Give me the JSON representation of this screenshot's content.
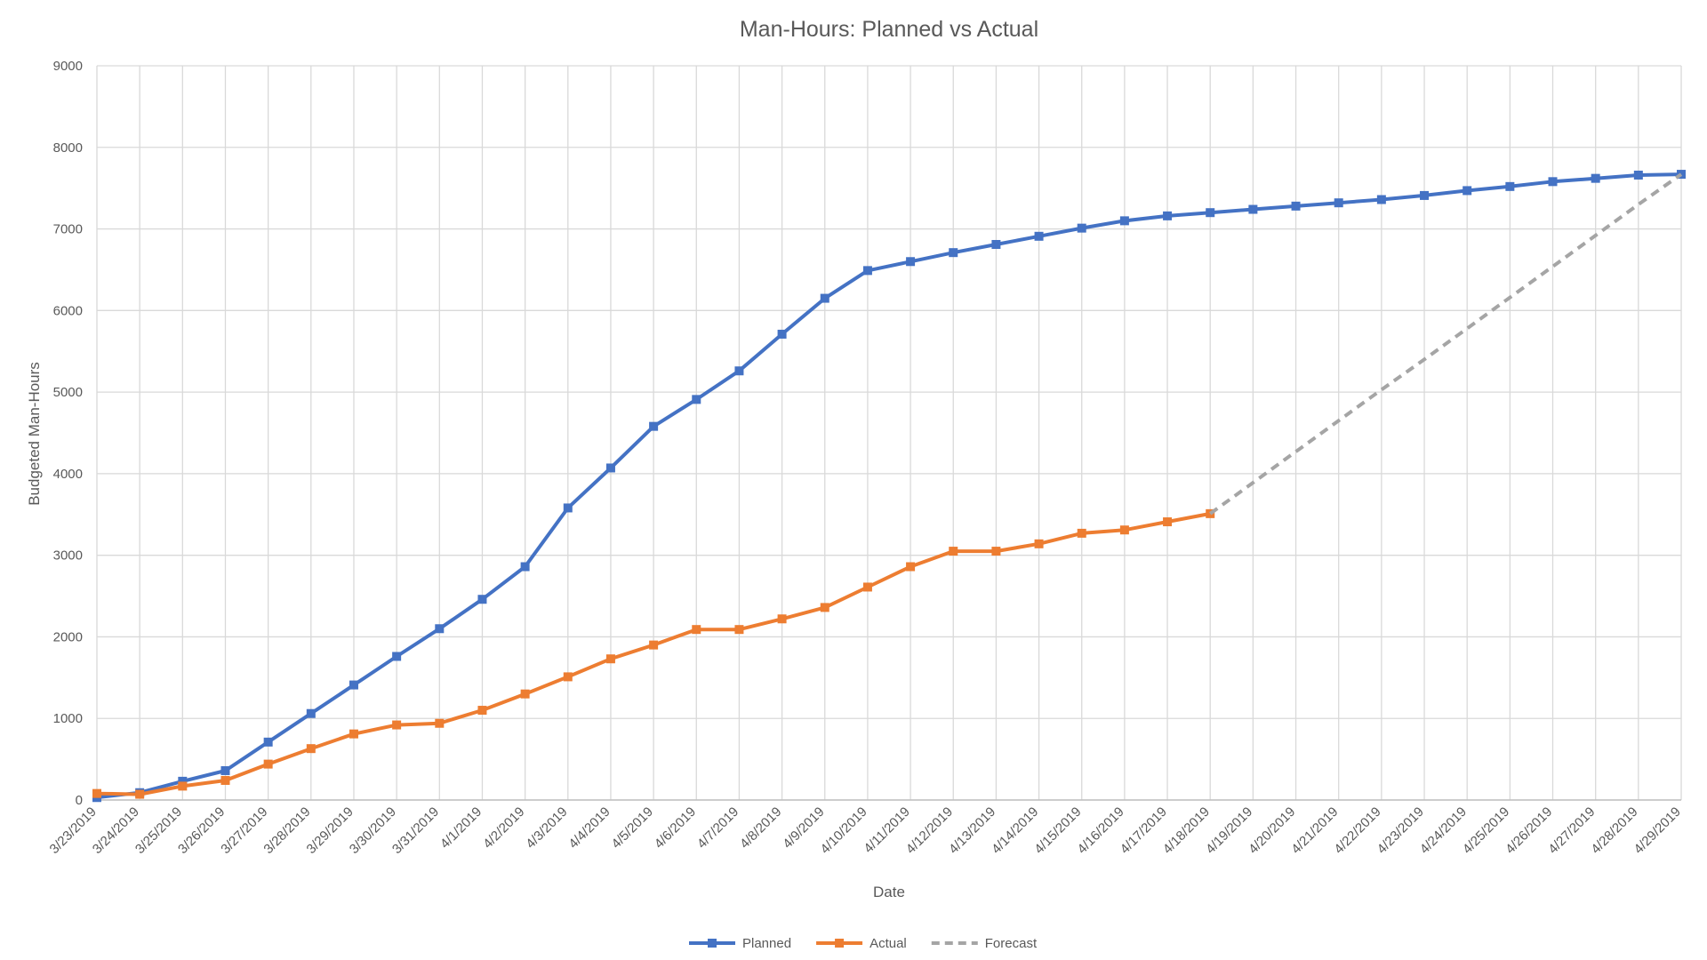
{
  "chart_data": {
    "type": "line",
    "title": "Man-Hours: Planned vs Actual",
    "xlabel": "Date",
    "ylabel": "Budgeted Man-Hours",
    "ylim": [
      0,
      9000
    ],
    "yticks": [
      0,
      1000,
      2000,
      3000,
      4000,
      5000,
      6000,
      7000,
      8000,
      9000
    ],
    "grid": true,
    "legend_position": "bottom",
    "categories": [
      "3/23/2019",
      "3/24/2019",
      "3/25/2019",
      "3/26/2019",
      "3/27/2019",
      "3/28/2019",
      "3/29/2019",
      "3/30/2019",
      "3/31/2019",
      "4/1/2019",
      "4/2/2019",
      "4/3/2019",
      "4/4/2019",
      "4/5/2019",
      "4/6/2019",
      "4/7/2019",
      "4/8/2019",
      "4/9/2019",
      "4/10/2019",
      "4/11/2019",
      "4/12/2019",
      "4/13/2019",
      "4/14/2019",
      "4/15/2019",
      "4/16/2019",
      "4/17/2019",
      "4/18/2019",
      "4/19/2019",
      "4/20/2019",
      "4/21/2019",
      "4/22/2019",
      "4/23/2019",
      "4/24/2019",
      "4/25/2019",
      "4/26/2019",
      "4/27/2019",
      "4/28/2019",
      "4/29/2019"
    ],
    "series": [
      {
        "name": "Planned",
        "color": "#4472C4",
        "style": "solid",
        "marker": "square",
        "values": [
          30,
          90,
          230,
          360,
          710,
          1060,
          1410,
          1760,
          2100,
          2460,
          2860,
          3580,
          4070,
          4580,
          4910,
          5260,
          5710,
          6150,
          6490,
          6600,
          6710,
          6810,
          6910,
          7010,
          7100,
          7160,
          7200,
          7240,
          7280,
          7320,
          7360,
          7410,
          7470,
          7520,
          7580,
          7620,
          7660,
          7670
        ]
      },
      {
        "name": "Actual",
        "color": "#ED7D31",
        "style": "solid",
        "marker": "square",
        "values": [
          80,
          70,
          170,
          240,
          440,
          630,
          810,
          920,
          940,
          1100,
          1300,
          1510,
          1730,
          1900,
          2090,
          2090,
          2220,
          2360,
          2610,
          2860,
          3050,
          3050,
          3140,
          3270,
          3310,
          3410,
          3510,
          null,
          null,
          null,
          null,
          null,
          null,
          null,
          null,
          null,
          null,
          null
        ]
      },
      {
        "name": "Forecast",
        "color": "#A5A5A5",
        "style": "dashed",
        "marker": "none",
        "values": [
          null,
          null,
          null,
          null,
          null,
          null,
          null,
          null,
          null,
          null,
          null,
          null,
          null,
          null,
          null,
          null,
          null,
          null,
          null,
          null,
          null,
          null,
          null,
          null,
          null,
          null,
          3510,
          3890,
          4270,
          4650,
          5030,
          5400,
          5780,
          6160,
          6540,
          6920,
          7300,
          7670
        ]
      }
    ]
  }
}
